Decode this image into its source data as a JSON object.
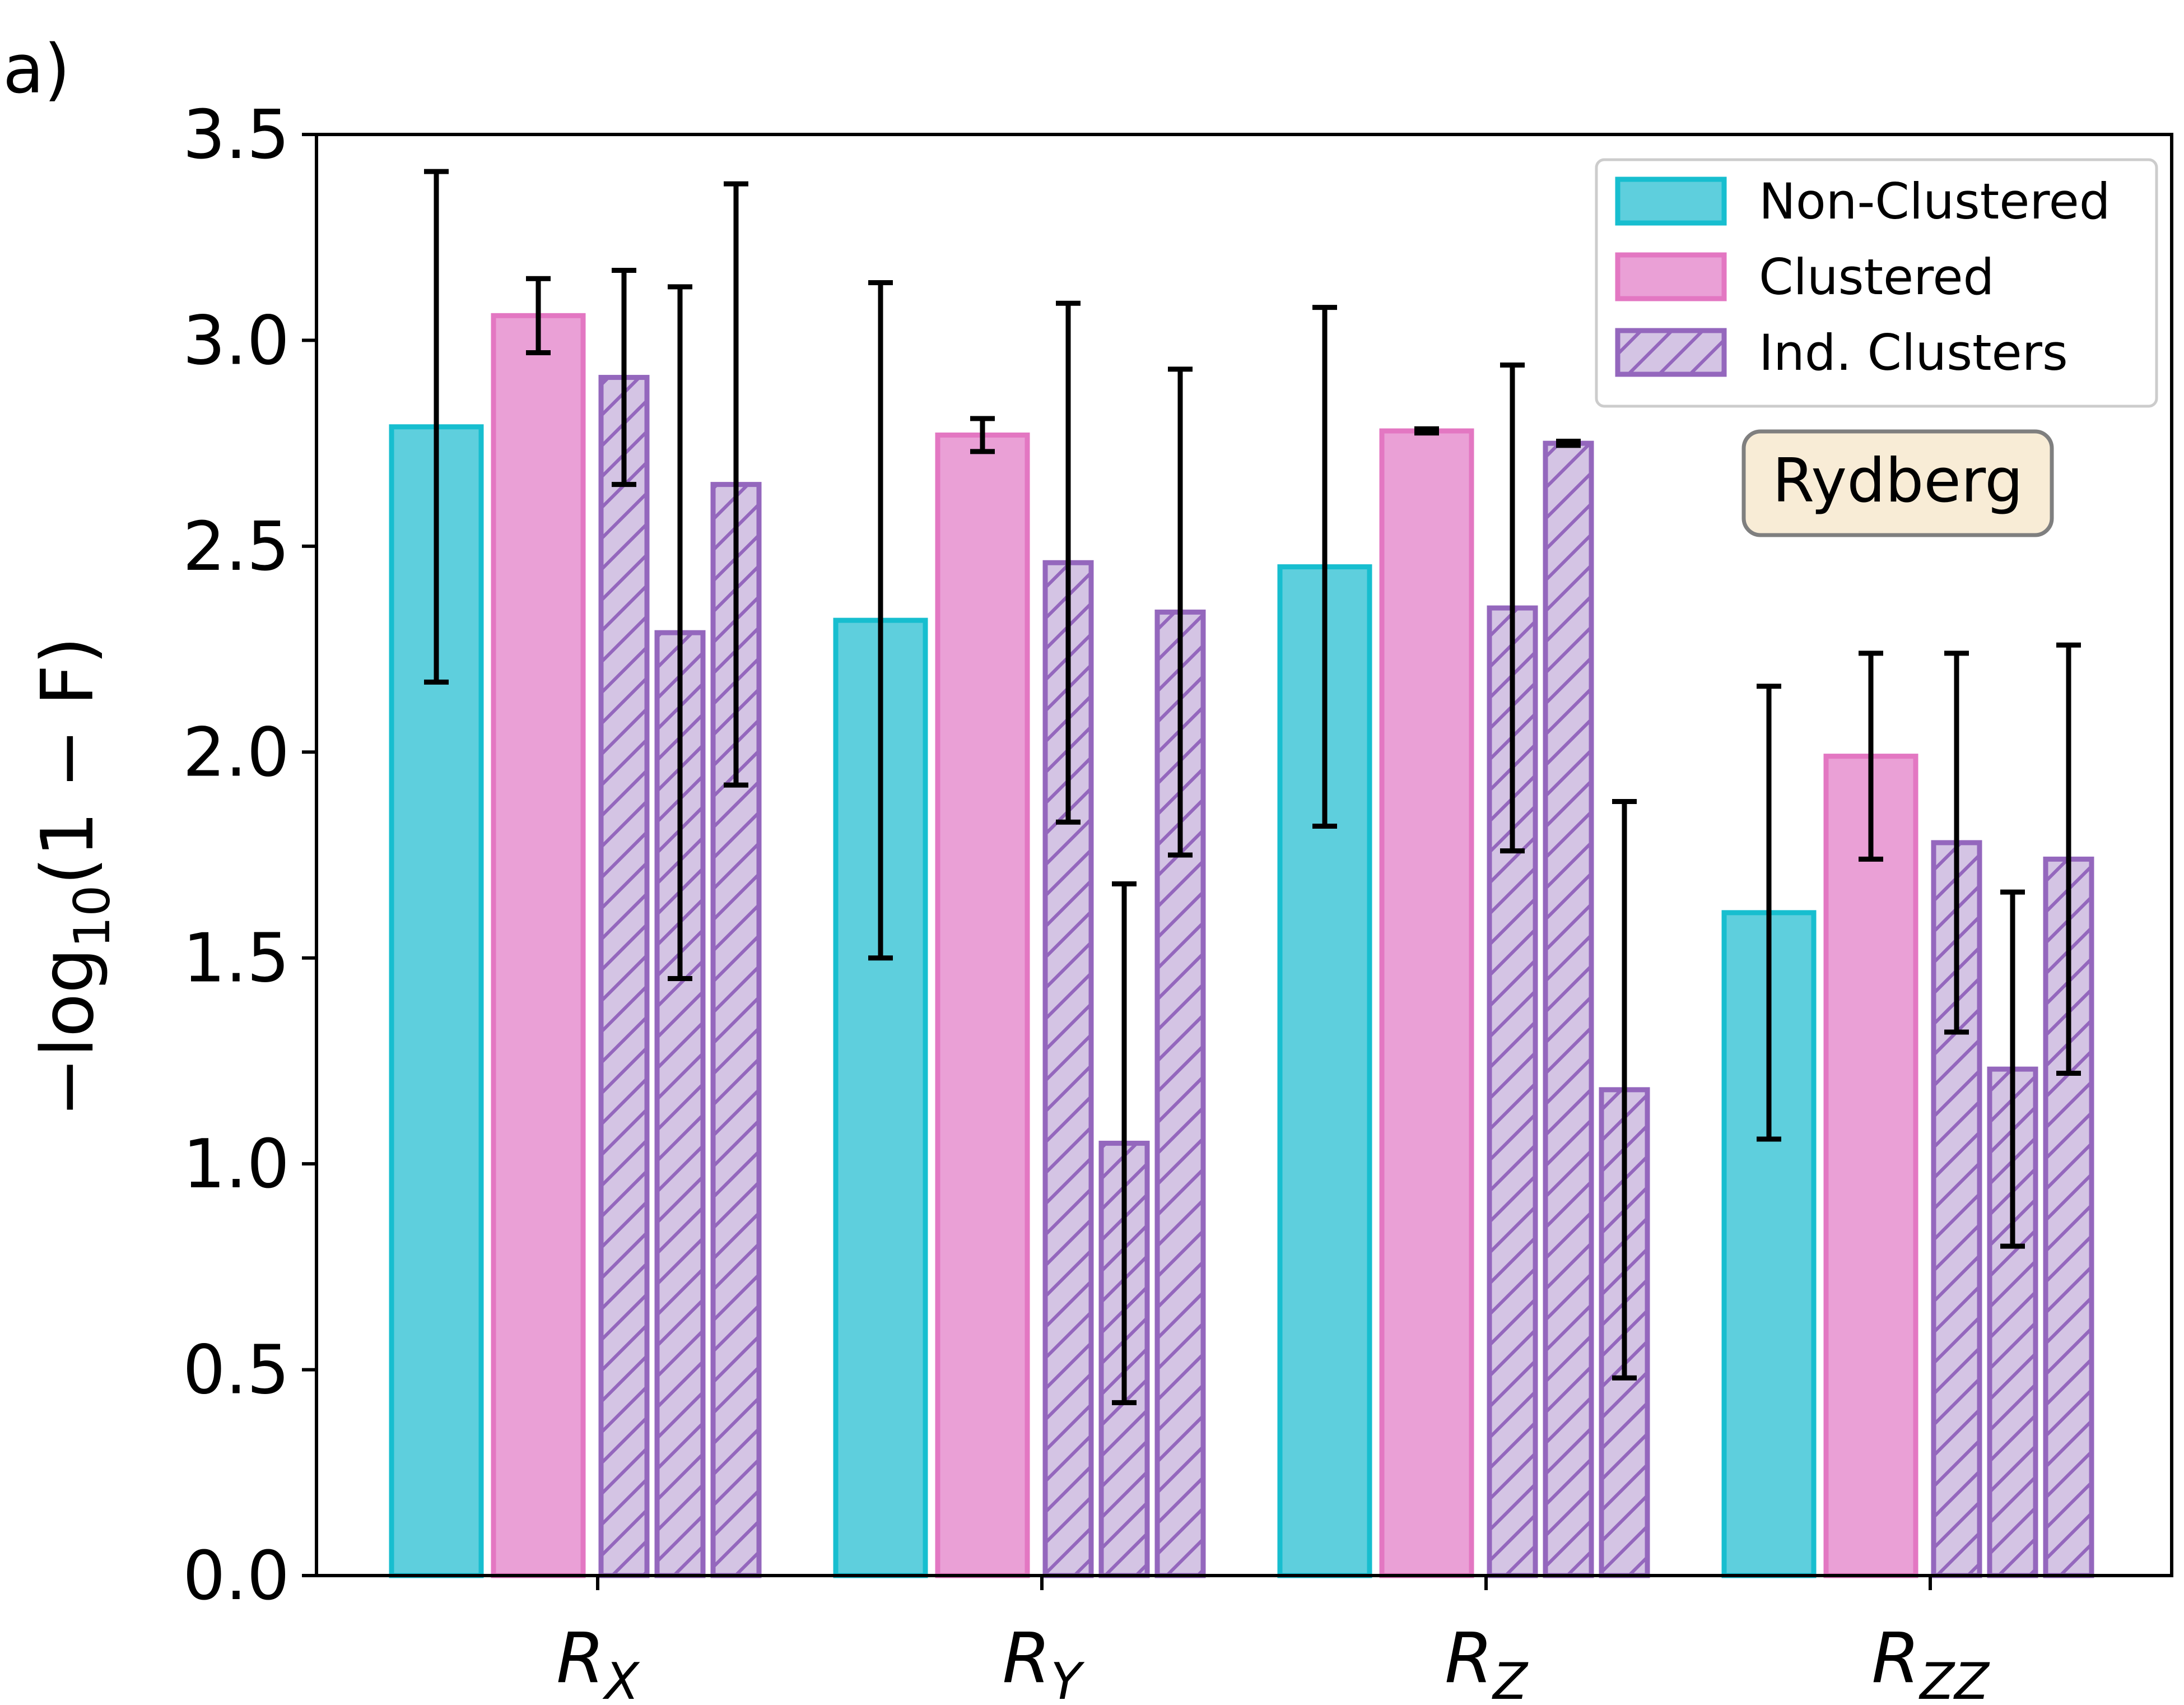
{
  "panel_label": "a)",
  "colors": {
    "non_clustered_fill": "#5ecfdd",
    "non_clustered_edge": "#17becf",
    "clustered_fill": "#eaa0d6",
    "clustered_edge": "#e377c2",
    "ind_clusters_fill": "#d4c4e4",
    "ind_clusters_edge": "#9467bd",
    "badge_fill": "#f8ecd6",
    "badge_edge": "#7f7f7f"
  },
  "chart_data": {
    "type": "bar",
    "ylabel_prefix": "−log",
    "ylabel_sub": "10",
    "ylabel_suffix": "(1 − F)",
    "ylim": [
      0,
      3.5
    ],
    "yticks": [
      "0.0",
      "0.5",
      "1.0",
      "1.5",
      "2.0",
      "2.5",
      "3.0",
      "3.5"
    ],
    "grid": false,
    "legend_placement": "top-right",
    "annotation": "Rydberg",
    "categories": [
      {
        "main": "R",
        "sub": "X"
      },
      {
        "main": "R",
        "sub": "Y"
      },
      {
        "main": "R",
        "sub": "Z"
      },
      {
        "main": "R",
        "sub": "ZZ"
      }
    ],
    "series": [
      {
        "name": "Non-Clustered",
        "style": "solid-cyan",
        "values": [
          [
            2.79,
            0.62
          ]
        ],
        "per_category": [
          {
            "value": 2.79,
            "err": 0.62
          },
          {
            "value": 2.32,
            "err": 0.82
          },
          {
            "value": 2.45,
            "err": 0.63
          },
          {
            "value": 1.61,
            "err": 0.55
          }
        ]
      },
      {
        "name": "Clustered",
        "style": "solid-pink",
        "per_category": [
          {
            "value": 3.06,
            "err": 0.09
          },
          {
            "value": 2.77,
            "err": 0.04
          },
          {
            "value": 2.78,
            "err": 0.005
          },
          {
            "value": 1.99,
            "err": 0.25
          }
        ]
      },
      {
        "name": "Ind. Clusters",
        "style": "hatched-purple",
        "per_category": [
          [
            {
              "value": 2.91,
              "err": 0.26
            },
            {
              "value": 2.29,
              "err": 0.84
            },
            {
              "value": 2.65,
              "err": 0.73
            }
          ],
          [
            {
              "value": 2.46,
              "err": 0.63
            },
            {
              "value": 1.05,
              "err": 0.63
            },
            {
              "value": 2.34,
              "err": 0.59
            }
          ],
          [
            {
              "value": 2.35,
              "err": 0.59
            },
            {
              "value": 2.75,
              "err": 0.005
            },
            {
              "value": 1.18,
              "err": 0.7
            }
          ],
          [
            {
              "value": 1.78,
              "err": 0.46
            },
            {
              "value": 1.23,
              "err": 0.43
            },
            {
              "value": 1.74,
              "err": 0.52
            }
          ]
        ]
      }
    ]
  }
}
